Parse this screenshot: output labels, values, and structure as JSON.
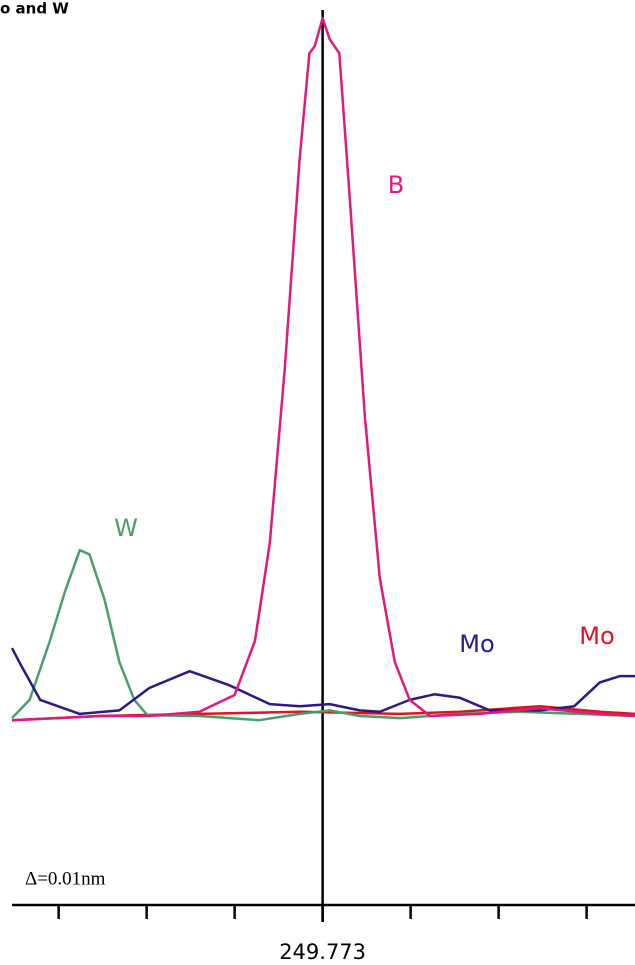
{
  "chart_data": {
    "type": "line",
    "title": "o and W",
    "annotation": "Δ=0.01nm",
    "xlim": [
      249.7377,
      249.8085
    ],
    "ylim": [
      -26.7,
      102.6
    ],
    "xticks": [
      249.773
    ],
    "xminorticks": [
      249.743,
      249.753,
      249.763,
      249.783,
      249.793,
      249.803
    ],
    "vline": 249.773,
    "series": [
      {
        "name": "B",
        "color": "#e0197d",
        "x": [
          249.7377,
          249.7477,
          249.7533,
          249.759,
          249.763,
          249.7653,
          249.767,
          249.7687,
          249.7704,
          249.7715,
          249.7721,
          249.773,
          249.7738,
          249.7749,
          249.7761,
          249.7778,
          249.7795,
          249.7812,
          249.7829,
          249.7852,
          249.7908,
          249.7977,
          249.8045,
          249.8085
        ],
        "values": [
          -0.3,
          0.3,
          0.3,
          0.9,
          3.3,
          11,
          25,
          50,
          80,
          95,
          96,
          100,
          97,
          95,
          74,
          43,
          20,
          8,
          2.6,
          0.3,
          0.6,
          1.4,
          0.6,
          0.3
        ]
      },
      {
        "name": "W",
        "color": "#4a9e6e",
        "x": [
          249.7377,
          249.7397,
          249.742,
          249.7437,
          249.7454,
          249.7465,
          249.7482,
          249.7499,
          249.7516,
          249.7531,
          249.759,
          249.7658,
          249.7704,
          249.7738,
          249.7772,
          249.7818,
          249.7886,
          249.7954,
          249.8022,
          249.8085
        ],
        "values": [
          0,
          2.6,
          11,
          18,
          24,
          23.4,
          17,
          8,
          2.6,
          0.4,
          0.3,
          -0.3,
          0.6,
          1.1,
          0.3,
          0,
          0.6,
          0.9,
          0.6,
          0.3
        ]
      },
      {
        "name": "Mo",
        "color": "#2b1a85",
        "x": [
          249.7377,
          249.7387,
          249.7409,
          249.7454,
          249.7499,
          249.7533,
          249.7579,
          249.7624,
          249.767,
          249.7704,
          249.7738,
          249.7772,
          249.7795,
          249.7829,
          249.7857,
          249.7886,
          249.792,
          249.7977,
          249.8016,
          249.8045,
          249.8068,
          249.8085
        ],
        "values": [
          10,
          7.6,
          2.6,
          0.6,
          1.1,
          4.3,
          6.7,
          4.7,
          2,
          1.7,
          2,
          1.1,
          0.9,
          2.6,
          3.4,
          2.9,
          1.1,
          1.1,
          1.7,
          5.1,
          6,
          6
        ]
      },
      {
        "name": "Mo",
        "color": "#e0141e",
        "x": [
          249.7377,
          249.7477,
          249.759,
          249.7704,
          249.7818,
          249.7886,
          249.7977,
          249.8045,
          249.8085
        ],
        "values": [
          -0.3,
          0.3,
          0.6,
          0.9,
          0.6,
          0.9,
          1.7,
          0.9,
          0.6
        ]
      }
    ]
  }
}
